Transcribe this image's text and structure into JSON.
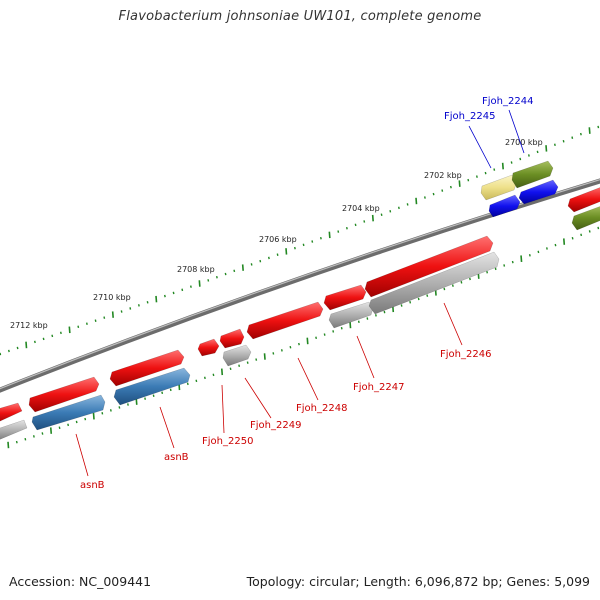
{
  "title": "Flavobacterium johnsoniae UW101, complete genome",
  "footer": {
    "accession": "Accession: NC_009441",
    "topology": "Topology: circular; Length: 6,096,872 bp; Genes: 5,099"
  },
  "colors": {
    "red_gene": "#ee1111",
    "gray_gene": "#aaaaaa",
    "steel_gene": "#3b7bb5",
    "blue_gene": "#1111ee",
    "olive_gene": "#6b8e23",
    "pale_gene": "#eee08a",
    "tick": "#228822",
    "backbone": "#777777",
    "label_red": "#cc0000",
    "label_blue": "#0000cc"
  },
  "scale_labels": [
    "2712 kbp",
    "2710 kbp",
    "2708 kbp",
    "2706 kbp",
    "2704 kbp",
    "2702 kbp",
    "2700 kbp"
  ],
  "gene_labels": [
    {
      "text": "asnB",
      "color": "label_red"
    },
    {
      "text": "asnB",
      "color": "label_red"
    },
    {
      "text": "Fjoh_2250",
      "color": "label_red"
    },
    {
      "text": "Fjoh_2249",
      "color": "label_red"
    },
    {
      "text": "Fjoh_2248",
      "color": "label_red"
    },
    {
      "text": "Fjoh_2247",
      "color": "label_red"
    },
    {
      "text": "Fjoh_2246",
      "color": "label_red"
    },
    {
      "text": "Fjoh_2245",
      "color": "label_blue"
    },
    {
      "text": "Fjoh_2244",
      "color": "label_blue"
    }
  ]
}
